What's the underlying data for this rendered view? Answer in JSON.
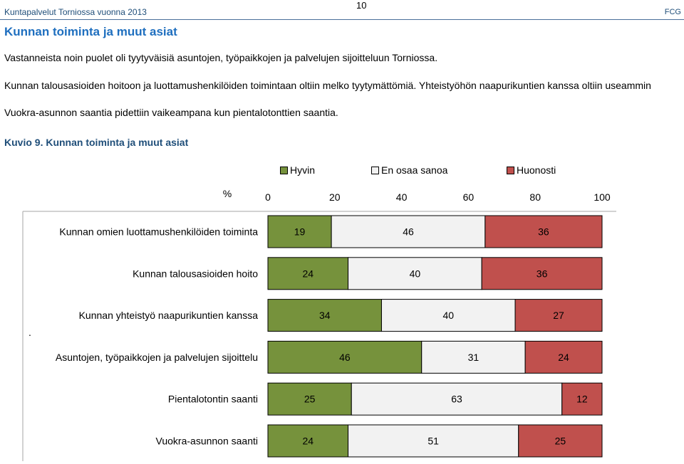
{
  "header": {
    "left": "Kuntapalvelut Torniossa vuonna 2013",
    "page_number": "10",
    "right": "FCG"
  },
  "section_title": "Kunnan toiminta ja muut asiat",
  "paragraphs": [
    "Vastanneista noin puolet oli tyytyväisiä  asuntojen, työpaikkojen ja palvelujen sijoitteluun Torniossa.",
    "Kunnan talousasioiden hoitoon ja luottamushenkilöiden toimintaan oltiin melko tyytymättömiä. Yhteistyöhön naapurikuntien kanssa oltiin useammin",
    "Vuokra-asunnon saantia pidettiin vaikeampana kun pientalotonttien saantia."
  ],
  "figure_caption": "Kuvio 9. Kunnan toiminta ja muut asiat",
  "stray_mark": ".",
  "chart_data": {
    "type": "bar",
    "orientation": "horizontal",
    "stacked": true,
    "axis_unit_label": "%",
    "xlim": [
      0,
      100
    ],
    "xticks": [
      "0",
      "20",
      "40",
      "60",
      "80",
      "100"
    ],
    "legend_placement": "top",
    "categories": [
      "Kunnan omien luottamushenkilöiden toiminta",
      "Kunnan talousasioiden hoito",
      "Kunnan yhteistyö naapurikuntien kanssa",
      "Asuntojen, työpaikkojen ja palvelujen sijoittelu",
      "Pientalotontin saanti",
      "Vuokra-asunnon saanti"
    ],
    "series": [
      {
        "name": "Hyvin",
        "color": "#76923c",
        "values": [
          19,
          24,
          34,
          46,
          25,
          24
        ]
      },
      {
        "name": "En osaa sanoa",
        "color": "#f2f2f2",
        "values": [
          46,
          40,
          40,
          31,
          63,
          51
        ]
      },
      {
        "name": "Huonosti",
        "color": "#c0504d",
        "values": [
          36,
          36,
          27,
          24,
          12,
          25
        ]
      }
    ]
  }
}
